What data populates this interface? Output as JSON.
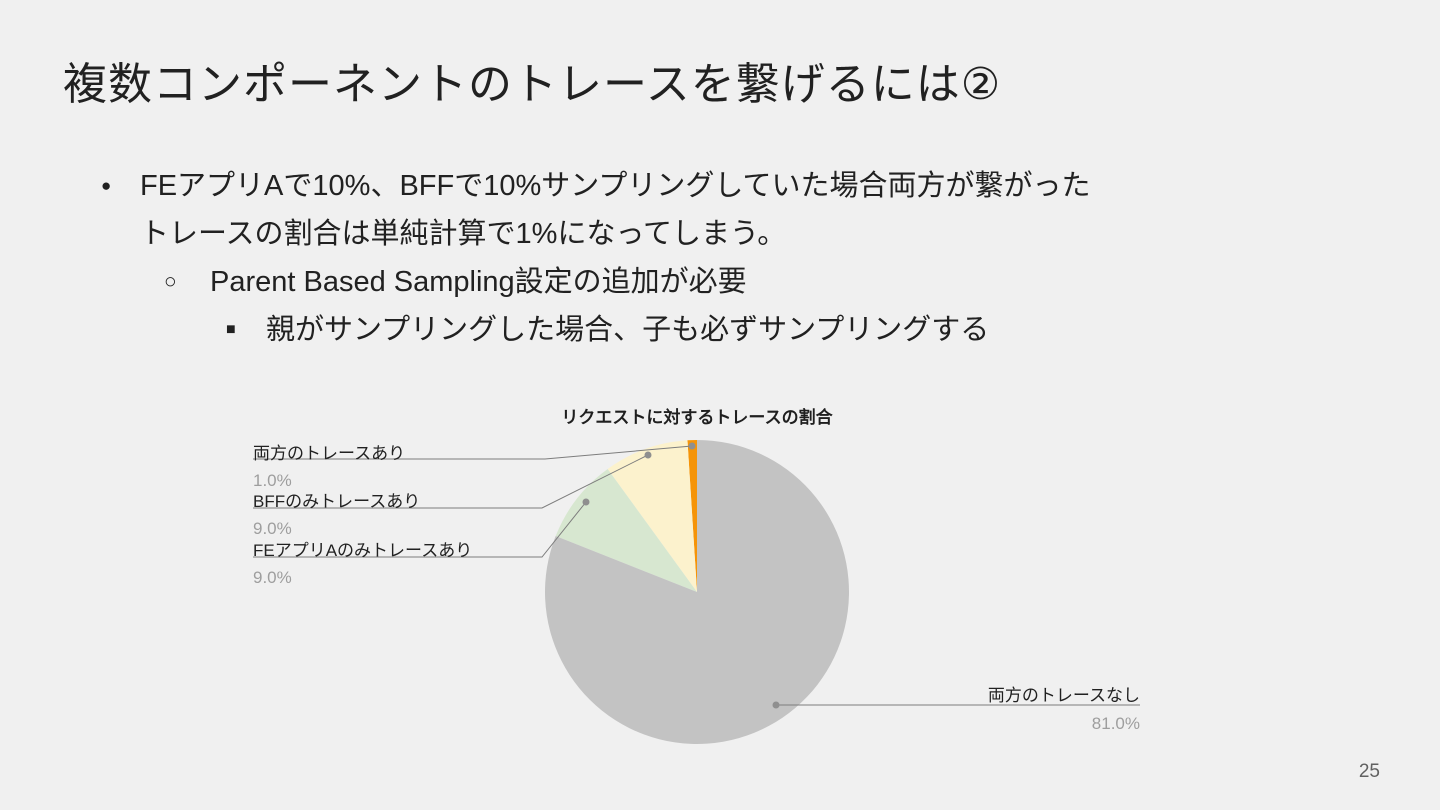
{
  "slide": {
    "title": "複数コンポーネントのトレースを繋げるには②",
    "page_number": "25",
    "bullets": [
      {
        "marker": "●",
        "lines": [
          "FEアプリAで10%、BFFで10%サンプリングしていた場合両方が繋がった",
          "トレースの割合は単純計算で1%になってしまう。"
        ]
      },
      {
        "marker": "○",
        "lines": [
          "Parent Based Sampling設定の追加が必要"
        ]
      },
      {
        "marker": "■",
        "lines": [
          "親がサンプリングした場合、子も必ずサンプリングする"
        ]
      }
    ]
  },
  "chart_data": {
    "type": "pie",
    "title": "リクエストに対するトレースの割合",
    "direction": "counterclockwise-from-top",
    "legend_position": "outside-callouts",
    "slices": [
      {
        "label": "両方のトレースあり",
        "value": 1.0,
        "pct_label": "1.0%",
        "color": "#f59408"
      },
      {
        "label": "BFFのみトレースあり",
        "value": 9.0,
        "pct_label": "9.0%",
        "color": "#fcf2cd"
      },
      {
        "label": "FEアプリAのみトレースあり",
        "value": 9.0,
        "pct_label": "9.0%",
        "color": "#d7e7d0"
      },
      {
        "label": "両方のトレースなし",
        "value": 81.0,
        "pct_label": "81.0%",
        "color": "#c3c3c3"
      }
    ],
    "leader_color": "#7d7d7d"
  }
}
